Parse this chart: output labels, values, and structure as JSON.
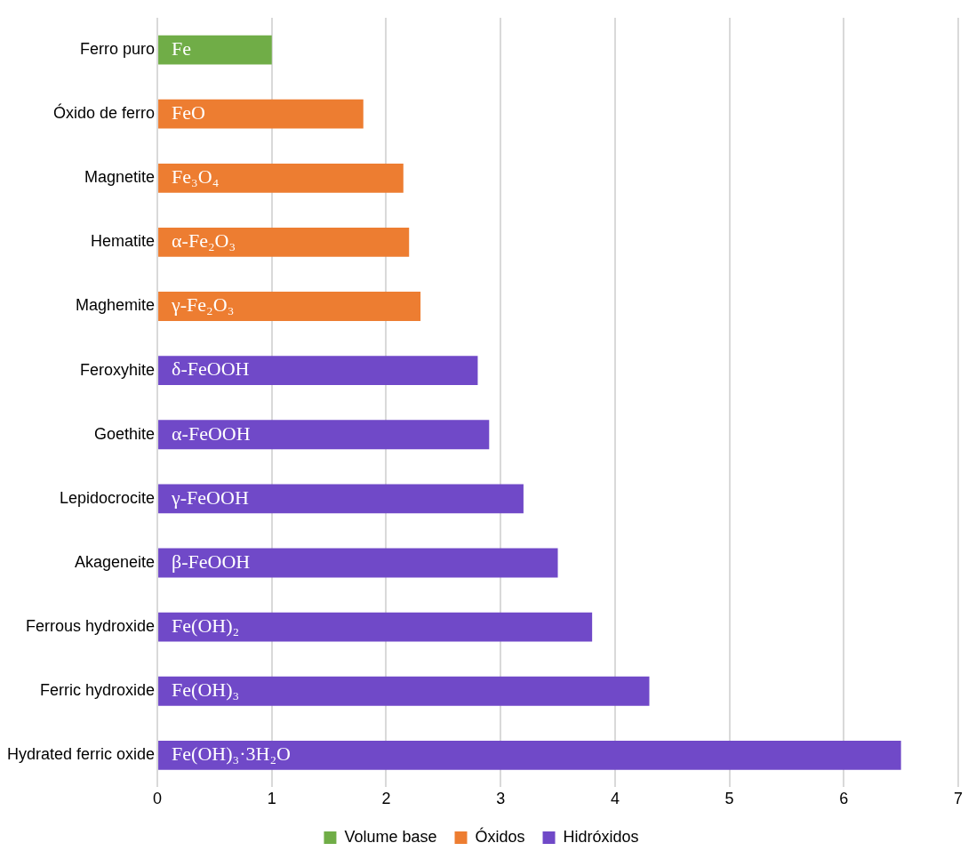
{
  "chart_data": {
    "type": "bar",
    "orientation": "horizontal",
    "categories": [
      "Ferro puro",
      "Óxido de ferro",
      "Magnetite",
      "Hematite",
      "Maghemite",
      "Feroxyhite",
      "Goethite",
      "Lepidocrocite",
      "Akageneite",
      "Ferrous hydroxide",
      "Ferric hydroxide",
      "Hydrated ferric oxide"
    ],
    "series": [
      {
        "name": "Volume base",
        "color": "#70ad47",
        "values": [
          1.0,
          null,
          null,
          null,
          null,
          null,
          null,
          null,
          null,
          null,
          null,
          null
        ]
      },
      {
        "name": "Óxidos",
        "color": "#ed7d31",
        "values": [
          null,
          1.8,
          2.15,
          2.2,
          2.3,
          null,
          null,
          null,
          null,
          null,
          null,
          null
        ]
      },
      {
        "name": "Hidróxidos",
        "color": "#7049c8",
        "values": [
          null,
          null,
          null,
          null,
          null,
          2.8,
          2.9,
          3.2,
          3.5,
          3.8,
          4.3,
          6.5
        ]
      }
    ],
    "xlim": [
      0,
      7
    ],
    "xticks": [
      0,
      1,
      2,
      3,
      4,
      5,
      6,
      7
    ],
    "grid": "x",
    "legend": "bottom",
    "annotations": [
      "Fe",
      "FeO",
      "Fe₃O₄",
      "α-Fe₂O₃",
      "γ-Fe₂O₃",
      "δ-FeOOH",
      "α-FeOOH",
      "γ-FeOOH",
      "β-FeOOH",
      "Fe(OH)₂",
      "Fe(OH)₃",
      "Fe(OH)₃·3H₂O"
    ]
  }
}
